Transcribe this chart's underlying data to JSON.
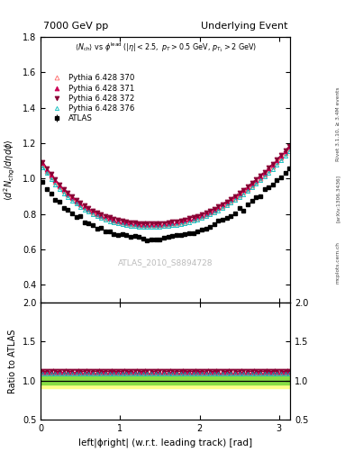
{
  "title_left": "7000 GeV pp",
  "title_right": "Underlying Event",
  "annotation": "ATLAS_2010_S8894728",
  "rivet_label": "Rivet 3.1.10, ≥ 3.4M events",
  "arxiv_label": "[arXiv:1306.3436]",
  "mcplots_label": "mcplots.cern.ch",
  "xlabel": "left|ϕright| (w.r.t. leading track) [rad]",
  "ylabel_main": "⟨d² N_{chg}/dηdϕ⟩",
  "ylabel_ratio": "Ratio to ATLAS",
  "ylim_main": [
    0.3,
    1.8
  ],
  "ylim_ratio": [
    0.5,
    2.0
  ],
  "xlim": [
    0.0,
    3.14159
  ],
  "yticks_main": [
    0.4,
    0.6,
    0.8,
    1.0,
    1.2,
    1.4,
    1.6,
    1.8
  ],
  "yticks_ratio": [
    0.5,
    1.0,
    1.5,
    2.0
  ],
  "xticks": [
    0,
    1,
    2,
    3
  ],
  "series": {
    "ATLAS": {
      "color": "#000000",
      "marker": "s",
      "markersize": 3.5,
      "label": "ATLAS",
      "fillstyle": "full"
    },
    "Pythia370": {
      "color": "#ff6666",
      "marker": "^",
      "markersize": 3.5,
      "label": "Pythia 6.428 370",
      "linestyle": "--",
      "fillstyle": "none"
    },
    "Pythia371": {
      "color": "#cc0055",
      "marker": "^",
      "markersize": 3.5,
      "label": "Pythia 6.428 371",
      "linestyle": "--",
      "fillstyle": "full"
    },
    "Pythia372": {
      "color": "#880033",
      "marker": "v",
      "markersize": 3.5,
      "label": "Pythia 6.428 372",
      "linestyle": "-.",
      "fillstyle": "full"
    },
    "Pythia376": {
      "color": "#00bbbb",
      "marker": "^",
      "markersize": 3.0,
      "label": "Pythia 6.428 376",
      "linestyle": "--",
      "fillstyle": "none"
    }
  },
  "error_band_yellow": "#ffff88",
  "error_band_green": "#88dd44",
  "background_color": "#ffffff"
}
